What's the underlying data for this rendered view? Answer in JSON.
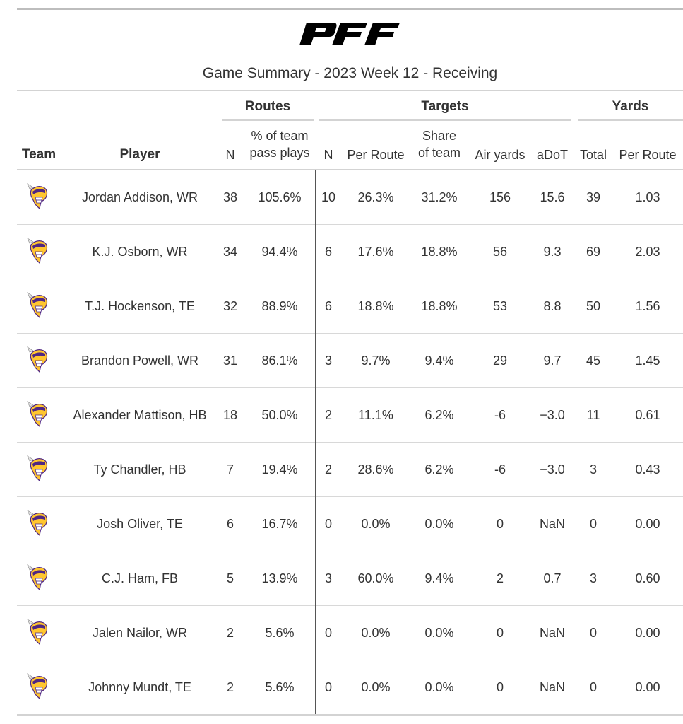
{
  "logo": {
    "text": "PFF",
    "icon": "pff-logo-icon"
  },
  "title": "Game Summary - 2023 Week 12 - Receiving",
  "spanners": {
    "routes": "Routes",
    "targets": "Targets",
    "yards": "Yards"
  },
  "columns": {
    "team": "Team",
    "player": "Player",
    "routes_n": "N",
    "routes_pct_1": "% of team",
    "routes_pct_2": "pass plays",
    "targets_n": "N",
    "targets_per_route": "Per Route",
    "targets_share_1": "Share",
    "targets_share_2": "of team",
    "air_yards": "Air yards",
    "adot": "aDoT",
    "yards_total": "Total",
    "yards_per_route": "Per Route"
  },
  "team_icon": "vikings-helmet-icon",
  "colors": {
    "purple": "#4f2683",
    "gold": "#ffc62f",
    "rule": "#d3d3d3"
  },
  "rows": [
    {
      "player": "Jordan Addison, WR",
      "routes": "38",
      "route_pct": "105.6%",
      "targets": "10",
      "tgt_per_route": "26.3%",
      "share": "31.2%",
      "air_yards": "156",
      "adot": "15.6",
      "yards": "39",
      "yds_per_route": "1.03"
    },
    {
      "player": "K.J. Osborn, WR",
      "routes": "34",
      "route_pct": "94.4%",
      "targets": "6",
      "tgt_per_route": "17.6%",
      "share": "18.8%",
      "air_yards": "56",
      "adot": "9.3",
      "yards": "69",
      "yds_per_route": "2.03"
    },
    {
      "player": "T.J. Hockenson, TE",
      "routes": "32",
      "route_pct": "88.9%",
      "targets": "6",
      "tgt_per_route": "18.8%",
      "share": "18.8%",
      "air_yards": "53",
      "adot": "8.8",
      "yards": "50",
      "yds_per_route": "1.56"
    },
    {
      "player": "Brandon Powell, WR",
      "routes": "31",
      "route_pct": "86.1%",
      "targets": "3",
      "tgt_per_route": "9.7%",
      "share": "9.4%",
      "air_yards": "29",
      "adot": "9.7",
      "yards": "45",
      "yds_per_route": "1.45"
    },
    {
      "player": "Alexander Mattison, HB",
      "routes": "18",
      "route_pct": "50.0%",
      "targets": "2",
      "tgt_per_route": "11.1%",
      "share": "6.2%",
      "air_yards": "-6",
      "adot": "−3.0",
      "yards": "11",
      "yds_per_route": "0.61"
    },
    {
      "player": "Ty Chandler, HB",
      "routes": "7",
      "route_pct": "19.4%",
      "targets": "2",
      "tgt_per_route": "28.6%",
      "share": "6.2%",
      "air_yards": "-6",
      "adot": "−3.0",
      "yards": "3",
      "yds_per_route": "0.43"
    },
    {
      "player": "Josh Oliver, TE",
      "routes": "6",
      "route_pct": "16.7%",
      "targets": "0",
      "tgt_per_route": "0.0%",
      "share": "0.0%",
      "air_yards": "0",
      "adot": "NaN",
      "yards": "0",
      "yds_per_route": "0.00"
    },
    {
      "player": "C.J. Ham, FB",
      "routes": "5",
      "route_pct": "13.9%",
      "targets": "3",
      "tgt_per_route": "60.0%",
      "share": "9.4%",
      "air_yards": "2",
      "adot": "0.7",
      "yards": "3",
      "yds_per_route": "0.60"
    },
    {
      "player": "Jalen Nailor, WR",
      "routes": "2",
      "route_pct": "5.6%",
      "targets": "0",
      "tgt_per_route": "0.0%",
      "share": "0.0%",
      "air_yards": "0",
      "adot": "NaN",
      "yards": "0",
      "yds_per_route": "0.00"
    },
    {
      "player": "Johnny Mundt, TE",
      "routes": "2",
      "route_pct": "5.6%",
      "targets": "0",
      "tgt_per_route": "0.0%",
      "share": "0.0%",
      "air_yards": "0",
      "adot": "NaN",
      "yards": "0",
      "yds_per_route": "0.00"
    }
  ]
}
